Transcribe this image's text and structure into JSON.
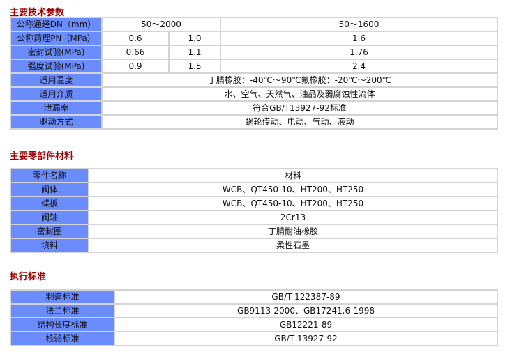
{
  "sections": [
    {
      "title": "主要技术参数"
    },
    {
      "title": "主要零部件材料"
    },
    {
      "title": "执行标准"
    }
  ],
  "tech": {
    "dn": {
      "label": "公称通经DN（mm）",
      "a": "50～2000",
      "b": "50～1600"
    },
    "pn": {
      "label": "公称药理PN（MPa）",
      "v": [
        "0.6",
        "1.0",
        "1.6"
      ]
    },
    "seal": {
      "label": "密封试验(MPa)",
      "v": [
        "0.66",
        "1.1",
        "1.76"
      ]
    },
    "strength": {
      "label": "强度试验(MPa)",
      "v": [
        "0.9",
        "1.5",
        "2.4"
      ]
    },
    "rows": [
      {
        "label": "适用温度",
        "value": "丁腈橡胶：-40℃～90℃氟橡胶：-20℃～200℃"
      },
      {
        "label": "适用介质",
        "value": "水、空气、天然气、油品及弱腐蚀性流体"
      },
      {
        "label": "泄漏率",
        "value": "符合GB/T13927-92标准"
      },
      {
        "label": "驱动方式",
        "value": "蜗轮传动、电动、气动、液动"
      }
    ]
  },
  "materials": [
    {
      "label": "零件名称",
      "value": "材料"
    },
    {
      "label": "阀体",
      "value": "WCB、QT450-10、HT200、HT250"
    },
    {
      "label": "蝶板",
      "value": "WCB、QT450-10、HT200、HT250"
    },
    {
      "label": "阀轴",
      "value": "2Cr13"
    },
    {
      "label": "密封圈",
      "value": "丁腈耐油橡胶"
    },
    {
      "label": "填料",
      "value": "柔性石墨"
    }
  ],
  "standards": [
    {
      "label": "制造标准",
      "value": "GB/T 122387-89"
    },
    {
      "label": "法兰标准",
      "value": "GB9113-2000、GB17241.6-1998"
    },
    {
      "label": "结构长度标准",
      "value": "GB12221-89"
    },
    {
      "label": "检验标准",
      "value": "GB/T 13927-92"
    }
  ],
  "colors": {
    "label_bg": "#6a8cff",
    "title": "#990000",
    "border": "#d4d4d4"
  }
}
